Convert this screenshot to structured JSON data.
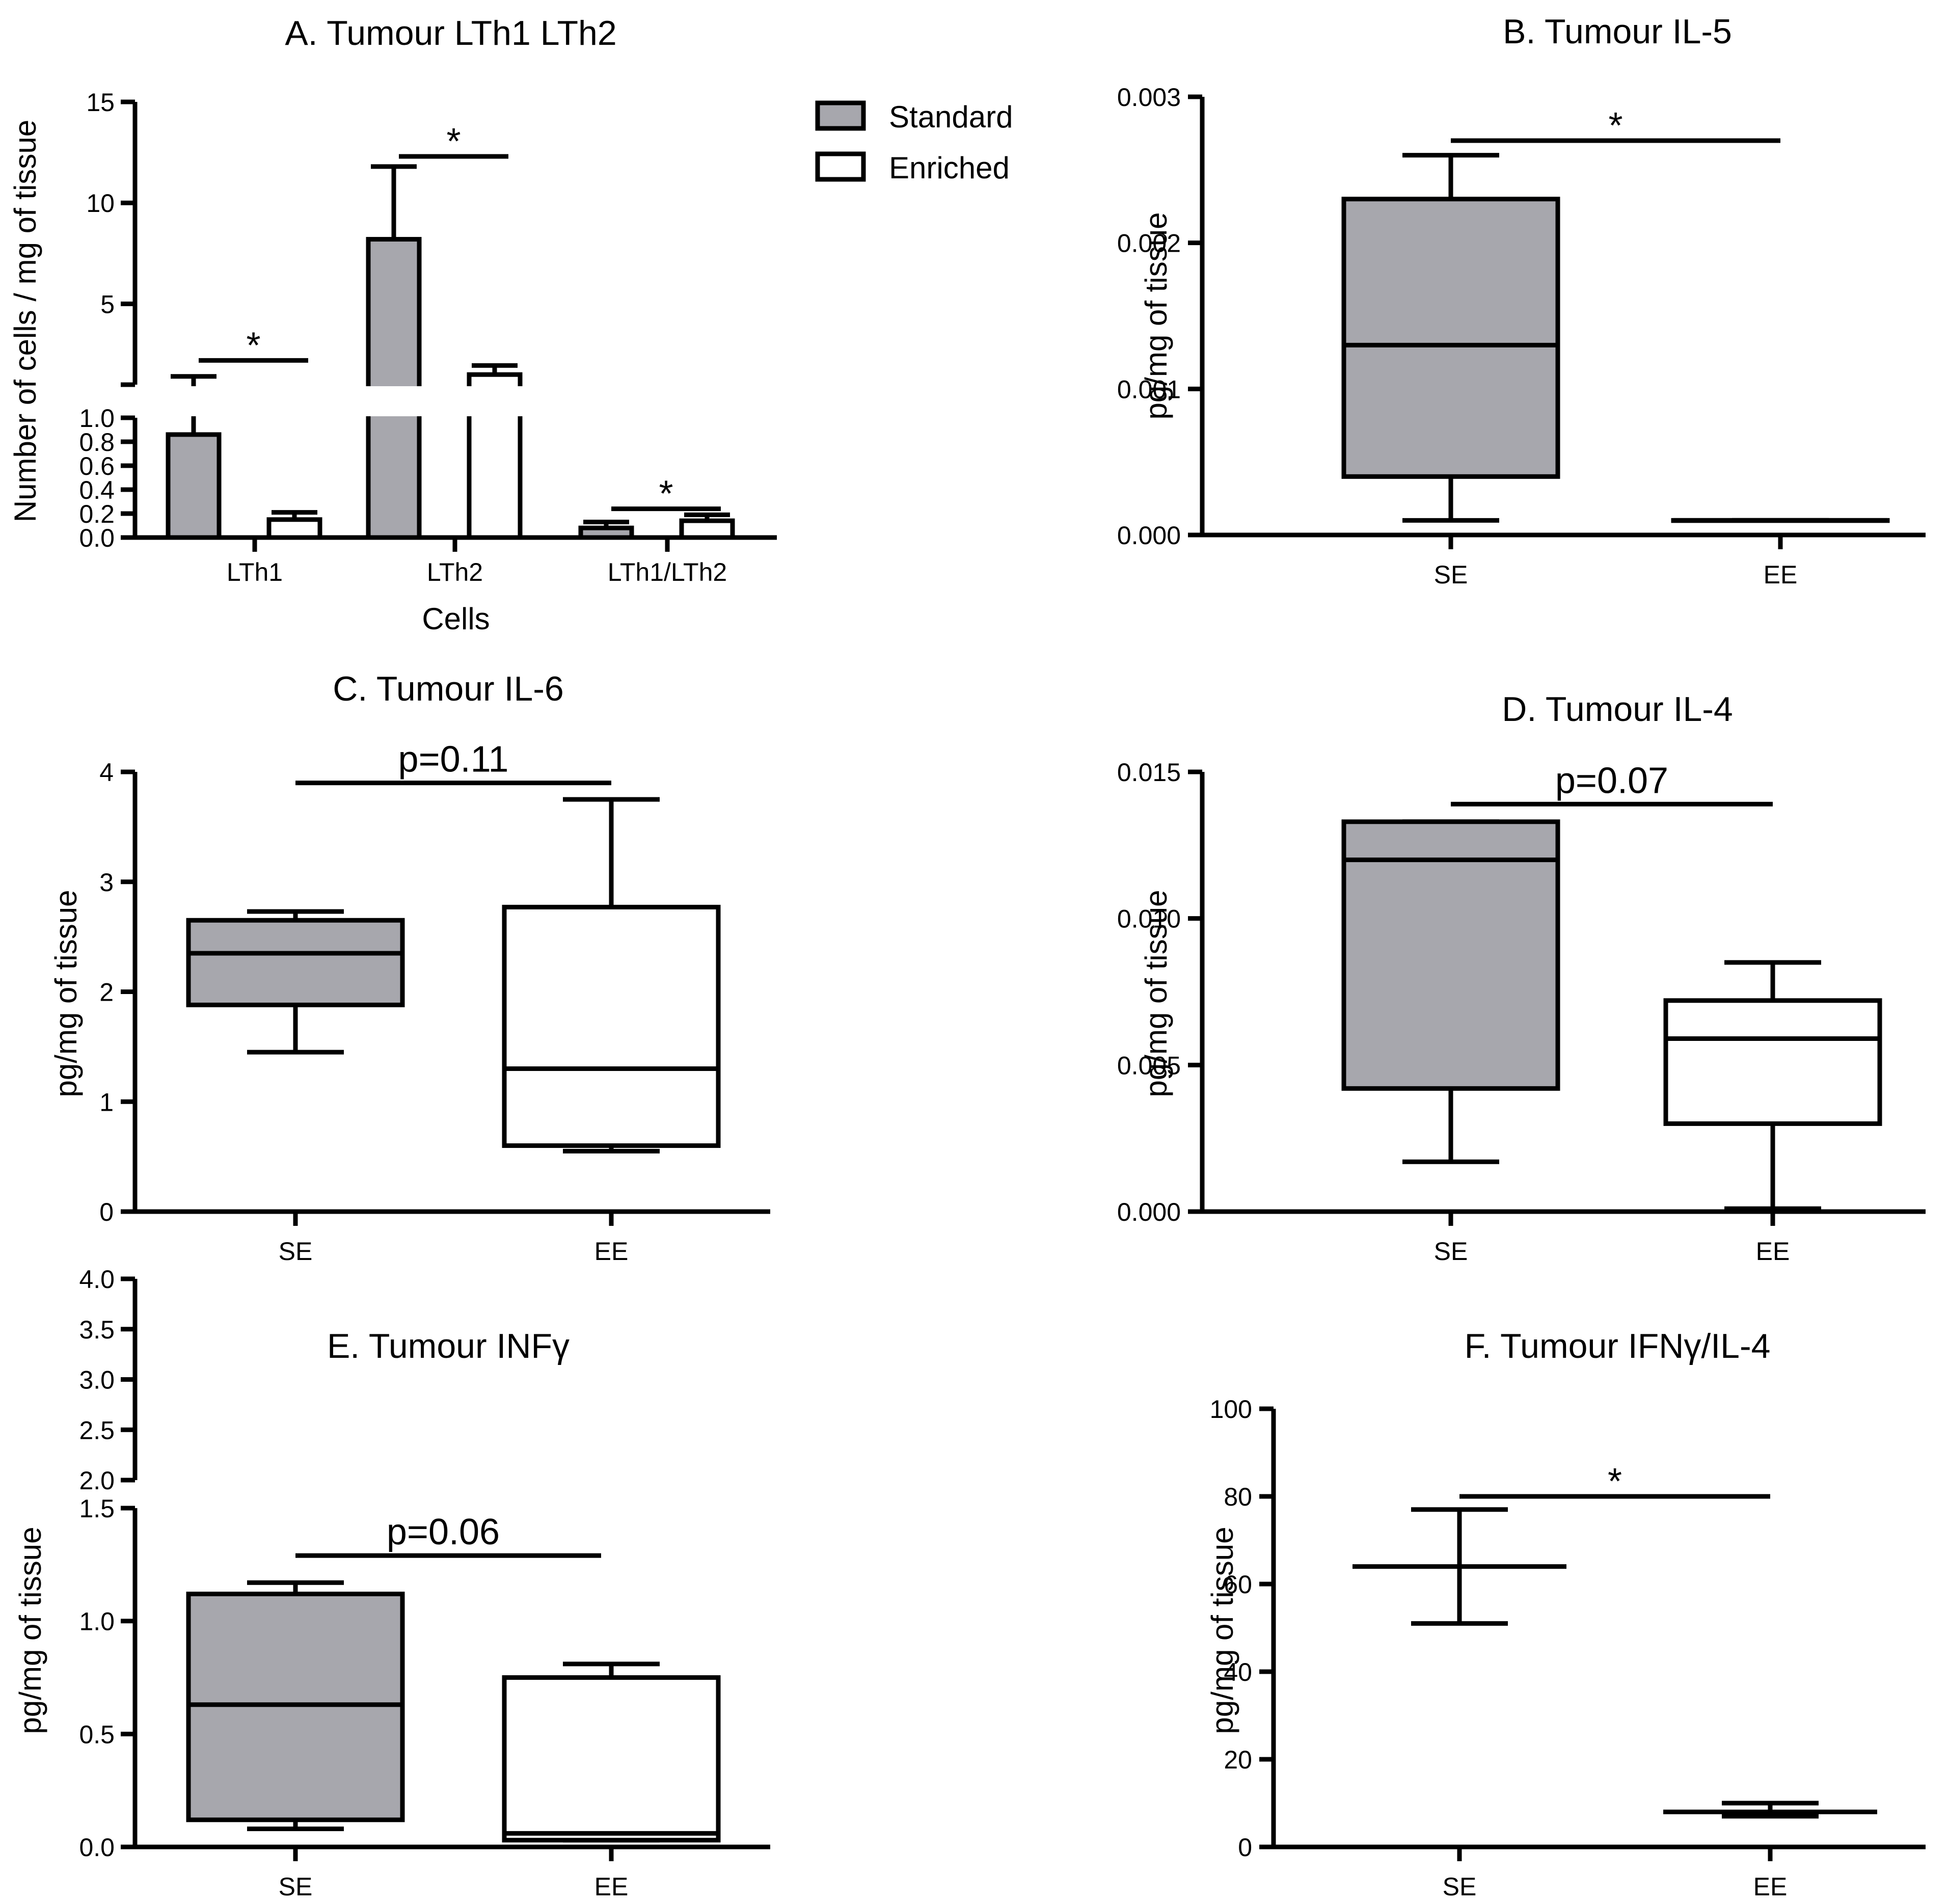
{
  "colors": {
    "standard": "#a7a7ad",
    "enriched": "#ffffff",
    "stroke": "#000000"
  },
  "legend": {
    "entries": [
      "Standard",
      "Enriched"
    ],
    "placement": "right of panel A"
  },
  "chart_data": [
    {
      "id": "A",
      "type": "bar",
      "title": "A. Tumour LTh1 LTh2",
      "xlabel": "Cells",
      "ylabel": "Number of cells / mg of tissue",
      "categories": [
        "LTh1",
        "LTh2",
        "LTh1/LTh2"
      ],
      "series": [
        {
          "name": "Standard",
          "values": [
            0.86,
            8.2,
            0.08
          ],
          "errors": [
            0.55,
            3.6,
            0.05
          ]
        },
        {
          "name": "Enriched",
          "values": [
            0.15,
            1.5,
            0.14
          ],
          "errors": [
            0.06,
            0.45,
            0.05
          ]
        }
      ],
      "yaxis": {
        "broken": true,
        "lower": {
          "range": [
            0,
            1
          ],
          "ticks": [
            0,
            0.2,
            0.4,
            0.6,
            0.8,
            1.0
          ],
          "tick_labels": [
            "0.0",
            "0.2",
            "0.4",
            "0.6",
            "0.8",
            "1.0"
          ]
        },
        "upper": {
          "range": [
            1,
            15
          ],
          "ticks": [
            5,
            10,
            15
          ],
          "tick_labels": [
            "5",
            "10",
            "15"
          ]
        }
      },
      "annotations": [
        {
          "text": "*",
          "from": 0,
          "to": 0,
          "y": 2.2
        },
        {
          "text": "*",
          "from": 1,
          "to": 1,
          "y": 12.3
        },
        {
          "text": "*",
          "from": 2,
          "to": 2,
          "y": 0.24
        }
      ]
    },
    {
      "id": "B",
      "type": "box",
      "title": "B. Tumour IL-5",
      "ylabel": "pg/mg of tissue",
      "categories": [
        "SE",
        "EE"
      ],
      "ylim": [
        0,
        0.003
      ],
      "ticks": [
        0,
        0.001,
        0.002,
        0.003
      ],
      "tick_labels": [
        "0.000",
        "0.001",
        "0.002",
        "0.003"
      ],
      "boxes": [
        {
          "name": "SE",
          "min": 0.0001,
          "q1": 0.0004,
          "median": 0.0013,
          "q3": 0.0023,
          "max": 0.0026
        },
        {
          "name": "EE",
          "min": 0.0001,
          "q1": 0.0001,
          "median": 0.0001,
          "q3": 0.0001,
          "max": 0.0001
        }
      ],
      "annotation": {
        "text": "*",
        "y": 0.0027
      }
    },
    {
      "id": "C",
      "type": "box",
      "title": "C. Tumour IL-6",
      "ylabel": "pg/mg of tissue",
      "categories": [
        "SE",
        "EE"
      ],
      "ylim": [
        0,
        4
      ],
      "ticks": [
        0,
        1,
        2,
        3,
        4
      ],
      "tick_labels": [
        "0",
        "1",
        "2",
        "3",
        "4"
      ],
      "boxes": [
        {
          "name": "SE",
          "min": 1.45,
          "q1": 1.88,
          "median": 2.35,
          "q3": 2.65,
          "max": 2.73
        },
        {
          "name": "EE",
          "min": 0.55,
          "q1": 0.6,
          "median": 1.3,
          "q3": 2.77,
          "max": 3.75
        }
      ],
      "annotation": {
        "text": "p=0.11",
        "y": 3.9
      }
    },
    {
      "id": "D",
      "type": "box",
      "title": "D. Tumour IL-4",
      "ylabel": "pg/mg of tissue",
      "categories": [
        "SE",
        "EE"
      ],
      "ylim": [
        0,
        0.015
      ],
      "ticks": [
        0,
        0.005,
        0.01,
        0.015
      ],
      "tick_labels": [
        "0.000",
        "0.005",
        "0.010",
        "0.015"
      ],
      "boxes": [
        {
          "name": "SE",
          "min": 0.0017,
          "q1": 0.0042,
          "median": 0.012,
          "q3": 0.0133,
          "max": 0.0133
        },
        {
          "name": "EE",
          "min": 0.0001,
          "q1": 0.003,
          "median": 0.0059,
          "q3": 0.0072,
          "max": 0.0085
        }
      ],
      "annotation": {
        "text": "p=0.07",
        "y": 0.0139
      }
    },
    {
      "id": "E",
      "type": "box",
      "title": "E. Tumour INFγ",
      "ylabel": "pg/mg of tissue",
      "categories": [
        "SE",
        "EE"
      ],
      "yaxis": {
        "broken": true,
        "lower": {
          "range": [
            0,
            1.5
          ],
          "ticks": [
            0,
            0.5,
            1.0,
            1.5
          ],
          "tick_labels": [
            "0.0",
            "0.5",
            "1.0",
            "1.5"
          ]
        },
        "upper": {
          "range": [
            2.0,
            4.0
          ],
          "ticks": [
            2.0,
            2.5,
            3.0,
            3.5,
            4.0
          ],
          "tick_labels": [
            "2.0",
            "2.5",
            "3.0",
            "3.5",
            "4.0"
          ]
        }
      },
      "boxes": [
        {
          "name": "SE",
          "min": 0.08,
          "q1": 0.12,
          "median": 0.63,
          "q3": 1.12,
          "max": 1.17
        },
        {
          "name": "EE",
          "min": 0.03,
          "q1": 0.03,
          "median": 0.06,
          "q3": 0.75,
          "max": 0.81
        }
      ],
      "annotation": {
        "text": "p=0.06",
        "y": 1.29
      }
    },
    {
      "id": "F",
      "type": "mean-sd",
      "title": "F. Tumour IFNγ/IL-4",
      "ylabel": "pg/mg of tissue",
      "categories": [
        "SE",
        "EE"
      ],
      "ylim": [
        0,
        100
      ],
      "ticks": [
        0,
        20,
        40,
        60,
        80,
        100
      ],
      "tick_labels": [
        "0",
        "20",
        "40",
        "60",
        "80",
        "100"
      ],
      "points": [
        {
          "name": "SE",
          "mean": 64,
          "low": 51,
          "high": 77
        },
        {
          "name": "EE",
          "mean": 8,
          "low": 7,
          "high": 10
        }
      ],
      "annotation": {
        "text": "*",
        "y": 80
      }
    }
  ]
}
